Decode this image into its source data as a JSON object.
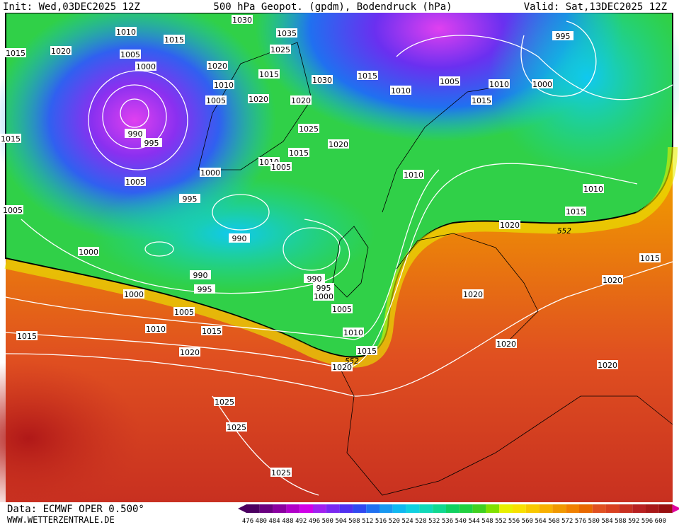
{
  "header": {
    "init": "Init: Wed,03DEC2025 12Z",
    "title": "500 hPa Geopot. (gpdm), Bodendruck (hPa)",
    "valid": "Valid: Sat,13DEC2025 12Z"
  },
  "footer": {
    "source": "Data: ECMWF OPER 0.500°",
    "site": "WWW.WETTERZENTRALE.DE"
  },
  "legend": {
    "labels": [
      "476",
      "480",
      "484",
      "488",
      "492",
      "496",
      "500",
      "504",
      "508",
      "512",
      "516",
      "520",
      "524",
      "528",
      "532",
      "536",
      "540",
      "544",
      "548",
      "552",
      "556",
      "560",
      "564",
      "568",
      "572",
      "576",
      "580",
      "584",
      "588",
      "592",
      "596",
      "600"
    ],
    "colors": [
      "#4b0060",
      "#6a0080",
      "#8a00a0",
      "#b000c8",
      "#d000e8",
      "#a020f0",
      "#7a28f0",
      "#5030f0",
      "#3048f0",
      "#2070f0",
      "#1898f0",
      "#10b8f0",
      "#10d0e0",
      "#10d8b8",
      "#10d890",
      "#10d060",
      "#20d040",
      "#40d020",
      "#80e000",
      "#e8f000",
      "#f8e000",
      "#f8c800",
      "#f8b000",
      "#f09800",
      "#f08000",
      "#e86800",
      "#e05020",
      "#d84020",
      "#c83020",
      "#b82020",
      "#a81818",
      "#981010"
    ]
  },
  "isobar_labels": [
    "1020",
    "1010",
    "1015",
    "1005",
    "1000",
    "1015",
    "1030",
    "1035",
    "1025",
    "1020",
    "1015",
    "1010",
    "1005",
    "1020",
    "1020",
    "1030",
    "1025",
    "1015",
    "1020",
    "1010",
    "1005",
    "1000",
    "1005",
    "990",
    "995",
    "995",
    "990",
    "1000",
    "1005",
    "1015",
    "990",
    "995",
    "990",
    "995",
    "1000",
    "1005",
    "1010",
    "1015",
    "1020",
    "1000",
    "1005",
    "1010",
    "1015",
    "1015",
    "1020",
    "1025",
    "1025",
    "1025",
    "1015",
    "1010",
    "1005",
    "1010",
    "1015",
    "995",
    "1000",
    "1010",
    "1010",
    "1015",
    "1020",
    "1015",
    "1020",
    "1020",
    "1020",
    "1020"
  ],
  "contour_labels": [
    "552",
    "552"
  ]
}
